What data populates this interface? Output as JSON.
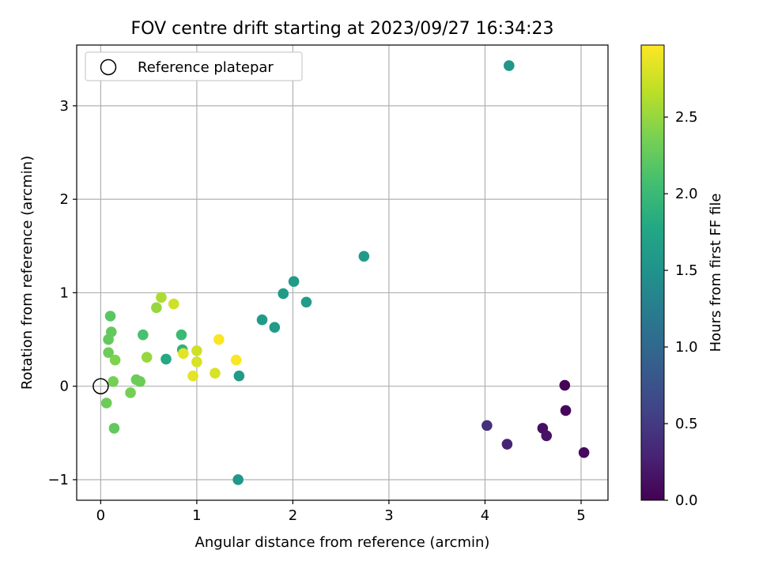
{
  "chart_data": {
    "type": "scatter",
    "title": "FOV centre drift starting at 2023/09/27 16:34:23",
    "xlabel": "Angular distance from reference (arcmin)",
    "ylabel": "Rotation from reference (arcmin)",
    "xlim": [
      -0.25,
      5.28
    ],
    "ylim": [
      -1.22,
      3.65
    ],
    "xticks": [
      0,
      1,
      2,
      3,
      4,
      5
    ],
    "yticks": [
      -1,
      0,
      1,
      2,
      3
    ],
    "xtick_labels": [
      "0",
      "1",
      "2",
      "3",
      "4",
      "5"
    ],
    "ytick_labels": [
      "−1",
      "0",
      "1",
      "2",
      "3"
    ],
    "grid": true,
    "legend": {
      "position": "top-left",
      "entries": [
        {
          "label": "Reference platepar",
          "marker": "open-circle"
        }
      ]
    },
    "reference_point": {
      "x": 0.0,
      "y": 0.0
    },
    "colorbar": {
      "label": "Hours from first FF file",
      "colormap": "viridis",
      "range": [
        0.0,
        2.97
      ],
      "ticks": [
        0.0,
        0.5,
        1.0,
        1.5,
        2.0,
        2.5
      ],
      "tick_labels": [
        "0.0",
        "0.5",
        "1.0",
        "1.5",
        "2.0",
        "2.5"
      ]
    },
    "points": [
      {
        "x": 4.83,
        "y": 0.01,
        "c": 0.02
      },
      {
        "x": 4.84,
        "y": -0.26,
        "c": 0.05
      },
      {
        "x": 5.03,
        "y": -0.71,
        "c": 0.08
      },
      {
        "x": 4.6,
        "y": -0.45,
        "c": 0.12
      },
      {
        "x": 4.64,
        "y": -0.53,
        "c": 0.15
      },
      {
        "x": 4.23,
        "y": -0.62,
        "c": 0.3
      },
      {
        "x": 4.02,
        "y": -0.42,
        "c": 0.4
      },
      {
        "x": 4.25,
        "y": 3.43,
        "c": 1.55
      },
      {
        "x": 2.74,
        "y": 1.39,
        "c": 1.6
      },
      {
        "x": 2.01,
        "y": 1.12,
        "c": 1.62
      },
      {
        "x": 1.9,
        "y": 0.99,
        "c": 1.62
      },
      {
        "x": 2.14,
        "y": 0.9,
        "c": 1.63
      },
      {
        "x": 1.68,
        "y": 0.71,
        "c": 1.62
      },
      {
        "x": 1.81,
        "y": 0.63,
        "c": 1.62
      },
      {
        "x": 1.44,
        "y": 0.11,
        "c": 1.6
      },
      {
        "x": 1.43,
        "y": -1.0,
        "c": 1.58
      },
      {
        "x": 0.68,
        "y": 0.29,
        "c": 1.8
      },
      {
        "x": 0.85,
        "y": 0.39,
        "c": 1.9
      },
      {
        "x": 0.84,
        "y": 0.55,
        "c": 2.0
      },
      {
        "x": 0.44,
        "y": 0.55,
        "c": 2.1
      },
      {
        "x": 0.1,
        "y": 0.75,
        "c": 2.2
      },
      {
        "x": 0.11,
        "y": 0.58,
        "c": 2.25
      },
      {
        "x": 0.08,
        "y": 0.5,
        "c": 2.25
      },
      {
        "x": 0.08,
        "y": 0.36,
        "c": 2.3
      },
      {
        "x": 0.15,
        "y": 0.28,
        "c": 2.4
      },
      {
        "x": 0.13,
        "y": 0.05,
        "c": 2.35
      },
      {
        "x": 0.06,
        "y": -0.18,
        "c": 2.3
      },
      {
        "x": 0.14,
        "y": -0.45,
        "c": 2.25
      },
      {
        "x": 0.31,
        "y": -0.07,
        "c": 2.35
      },
      {
        "x": 0.37,
        "y": 0.07,
        "c": 2.3
      },
      {
        "x": 0.41,
        "y": 0.05,
        "c": 2.3
      },
      {
        "x": 0.48,
        "y": 0.31,
        "c": 2.5
      },
      {
        "x": 0.58,
        "y": 0.84,
        "c": 2.5
      },
      {
        "x": 0.63,
        "y": 0.95,
        "c": 2.6
      },
      {
        "x": 0.76,
        "y": 0.88,
        "c": 2.75
      },
      {
        "x": 0.86,
        "y": 0.35,
        "c": 2.85
      },
      {
        "x": 1.0,
        "y": 0.38,
        "c": 2.75
      },
      {
        "x": 1.0,
        "y": 0.26,
        "c": 2.8
      },
      {
        "x": 0.96,
        "y": 0.11,
        "c": 2.85
      },
      {
        "x": 1.19,
        "y": 0.14,
        "c": 2.8
      },
      {
        "x": 1.23,
        "y": 0.5,
        "c": 2.95
      },
      {
        "x": 1.41,
        "y": 0.28,
        "c": 2.95
      }
    ]
  }
}
